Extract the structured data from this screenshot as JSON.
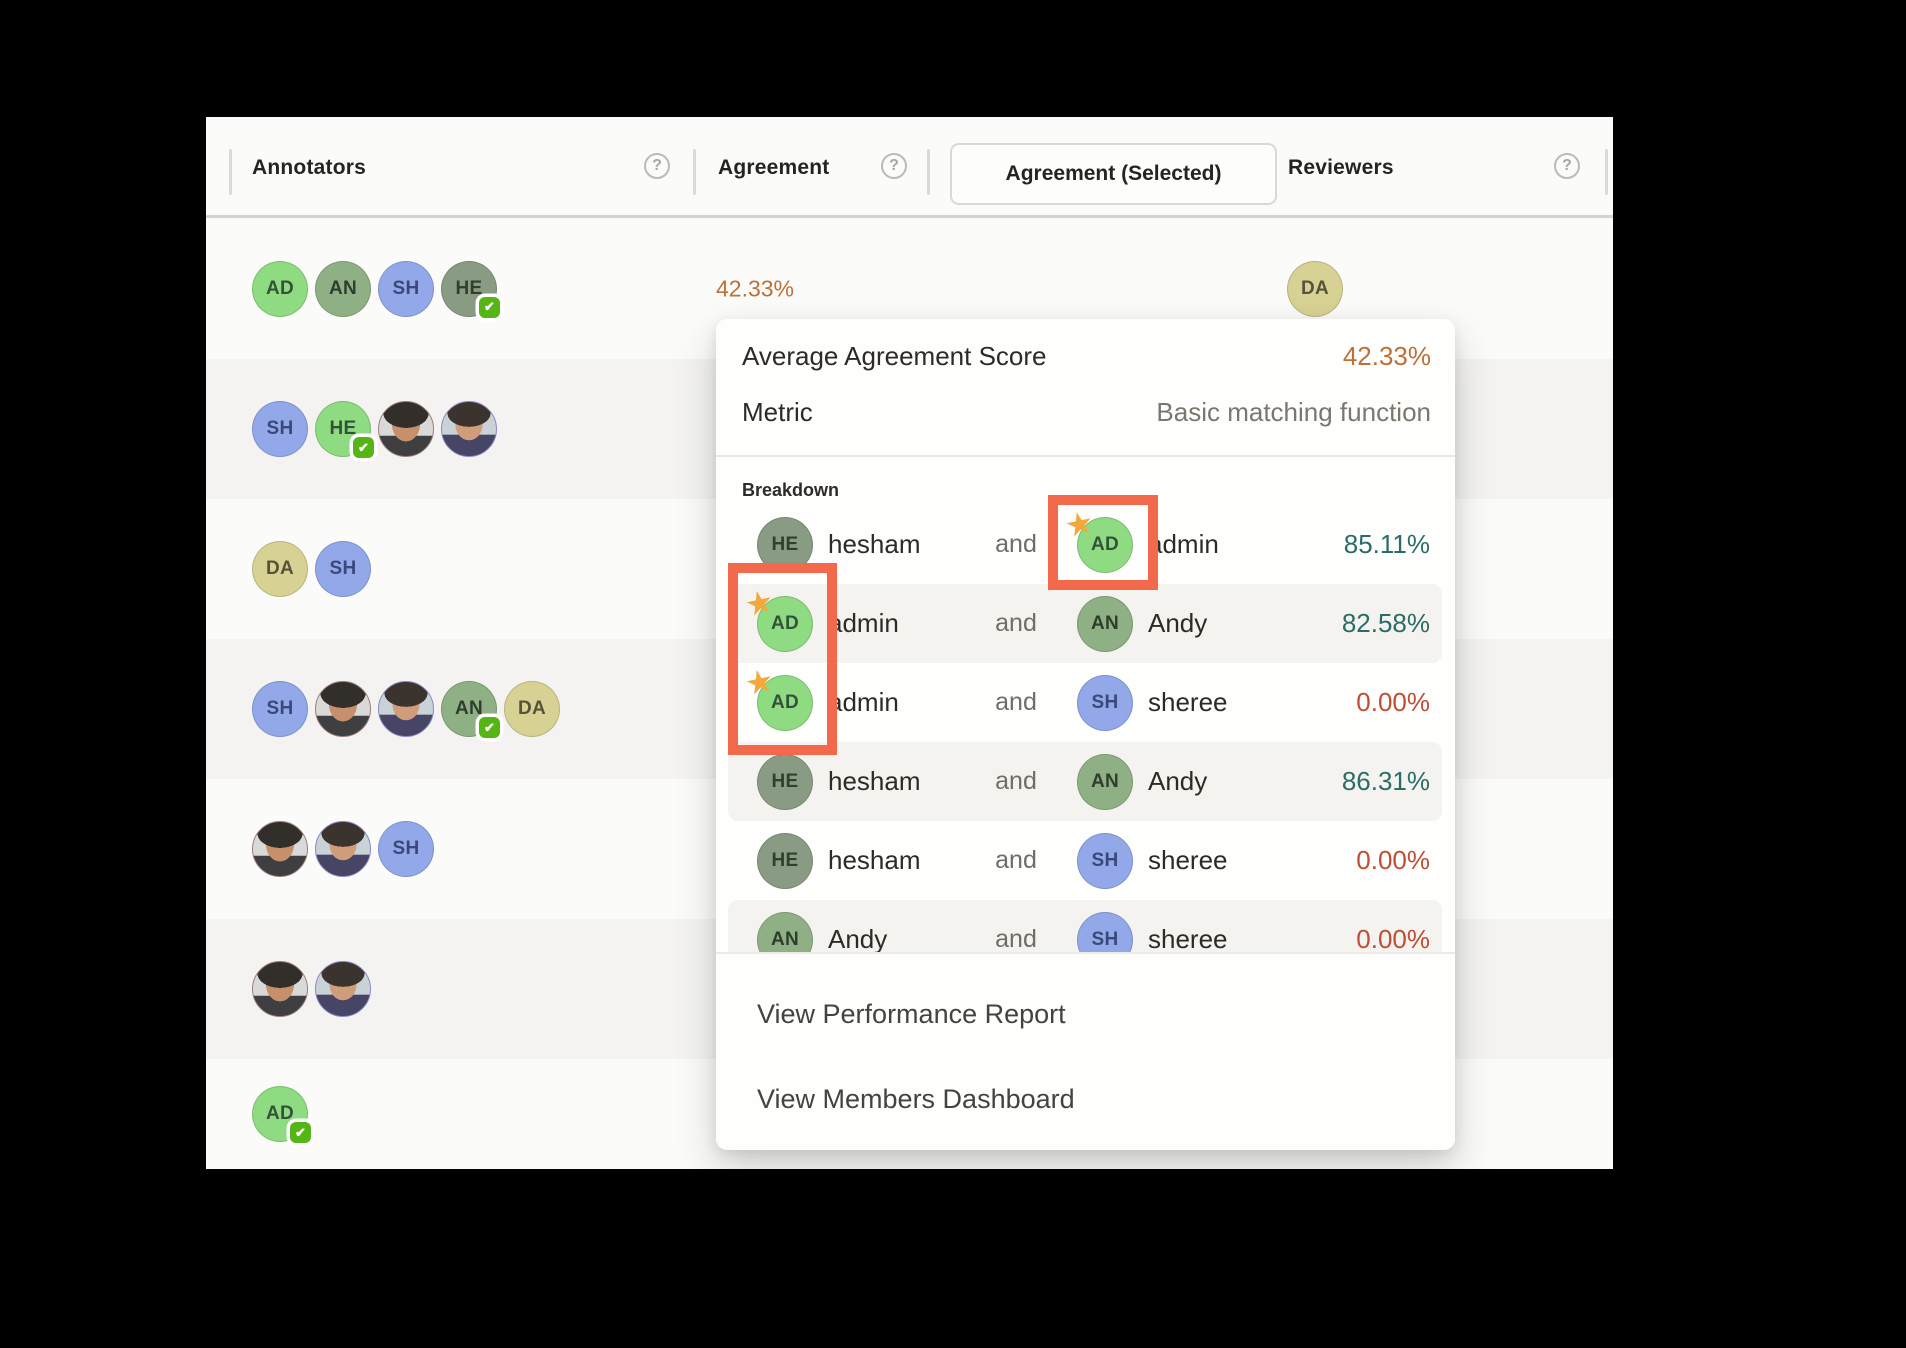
{
  "header": {
    "help_glyph": "?",
    "columns": [
      {
        "label": "Annotators",
        "has_help": true
      },
      {
        "label": "Agreement",
        "has_help": true
      },
      {
        "label": "Agreement (Selected)",
        "selected": true,
        "has_help": false
      },
      {
        "label": "Reviewers",
        "has_help": true
      }
    ]
  },
  "colors": {
    "highlight_box": "#f3694c",
    "star": "#f2a83a",
    "score_positive": "#2a6d67",
    "score_zero": "#c04e35",
    "score_average": "#bd7038",
    "verified_badge": "#55b514"
  },
  "check_glyph": "✔",
  "star_glyph": "★",
  "rows": [
    {
      "annotators": [
        {
          "initials": "AD",
          "color": "green"
        },
        {
          "initials": "AN",
          "color": "sage"
        },
        {
          "initials": "SH",
          "color": "blue"
        },
        {
          "initials": "HE",
          "color": "olive",
          "check": true
        }
      ],
      "agreement": "42.33%",
      "reviewers": [
        {
          "initials": "DA",
          "color": "khaki"
        }
      ]
    },
    {
      "annotators": [
        {
          "initials": "SH",
          "color": "blue"
        },
        {
          "initials": "HE",
          "color": "green",
          "check": true
        },
        {
          "photo": "photo1"
        },
        {
          "photo": "photo2"
        }
      ]
    },
    {
      "annotators": [
        {
          "initials": "DA",
          "color": "khaki"
        },
        {
          "initials": "SH",
          "color": "blue"
        }
      ]
    },
    {
      "annotators": [
        {
          "initials": "SH",
          "color": "blue"
        },
        {
          "photo": "photo1"
        },
        {
          "photo": "photo2"
        },
        {
          "initials": "AN",
          "color": "sage",
          "check": true
        },
        {
          "initials": "DA",
          "color": "khaki"
        }
      ]
    },
    {
      "annotators": [
        {
          "photo": "photo1"
        },
        {
          "photo": "photo2"
        },
        {
          "initials": "SH",
          "color": "blue"
        }
      ]
    },
    {
      "annotators": [
        {
          "photo": "photo1"
        },
        {
          "photo": "photo2"
        }
      ]
    },
    {
      "annotators": [
        {
          "initials": "AD",
          "color": "green",
          "check": true
        }
      ],
      "reviewers": [
        {
          "initials": "",
          "color": "sage"
        }
      ]
    }
  ],
  "popup": {
    "average_label": "Average Agreement Score",
    "average_value": "42.33%",
    "metric_label": "Metric",
    "metric_value": "Basic matching function",
    "breakdown_label": "Breakdown",
    "pairs": [
      {
        "a": {
          "initials": "HE",
          "name": "hesham",
          "color": "olive"
        },
        "conj": "and",
        "b": {
          "initials": "AD",
          "name": "admin",
          "color": "green",
          "starred": true
        },
        "score": "85.11%",
        "tone": "teal"
      },
      {
        "a": {
          "initials": "AD",
          "name": "admin",
          "color": "green",
          "starred": true
        },
        "conj": "and",
        "b": {
          "initials": "AN",
          "name": "Andy",
          "color": "sage"
        },
        "score": "82.58%",
        "tone": "teal"
      },
      {
        "a": {
          "initials": "AD",
          "name": "admin",
          "color": "green",
          "starred": true
        },
        "conj": "and",
        "b": {
          "initials": "SH",
          "name": "sheree",
          "color": "blue"
        },
        "score": "0.00%",
        "tone": "red"
      },
      {
        "a": {
          "initials": "HE",
          "name": "hesham",
          "color": "olive"
        },
        "conj": "and",
        "b": {
          "initials": "AN",
          "name": "Andy",
          "color": "sage"
        },
        "score": "86.31%",
        "tone": "teal"
      },
      {
        "a": {
          "initials": "HE",
          "name": "hesham",
          "color": "olive"
        },
        "conj": "and",
        "b": {
          "initials": "SH",
          "name": "sheree",
          "color": "blue"
        },
        "score": "0.00%",
        "tone": "red"
      },
      {
        "a": {
          "initials": "AN",
          "name": "Andy",
          "color": "sage"
        },
        "conj": "and",
        "b": {
          "initials": "SH",
          "name": "sheree",
          "color": "blue"
        },
        "score": "0.00%",
        "tone": "red"
      }
    ],
    "links": [
      {
        "label": "View Performance Report"
      },
      {
        "label": "View Members Dashboard"
      }
    ]
  }
}
